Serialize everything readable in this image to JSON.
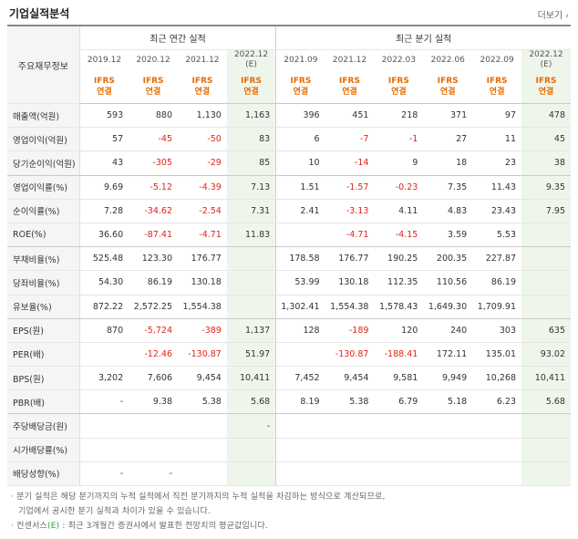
{
  "title": "기업실적분석",
  "more_label": "더보기",
  "header": {
    "row_label": "주요재무정보",
    "annual_group": "최근 연간 실적",
    "quarter_group": "최근 분기 실적",
    "periods": [
      "2019.12",
      "2020.12",
      "2021.12",
      "2022.12",
      "2021.09",
      "2021.12",
      "2022.03",
      "2022.06",
      "2022.09",
      "2022.12"
    ],
    "estimate_suffix": "(E)",
    "ifrs": "IFRS",
    "consolidated": "연결"
  },
  "rows": [
    {
      "label": "매출액(억원)",
      "values": [
        "593",
        "880",
        "1,130",
        "1,163",
        "396",
        "451",
        "218",
        "371",
        "97",
        "478"
      ]
    },
    {
      "label": "영업이익(억원)",
      "values": [
        "57",
        "-45",
        "-50",
        "83",
        "6",
        "-7",
        "-1",
        "27",
        "11",
        "45"
      ]
    },
    {
      "label": "당기순이익(억원)",
      "values": [
        "43",
        "-305",
        "-29",
        "85",
        "10",
        "-14",
        "9",
        "18",
        "23",
        "38"
      ]
    },
    {
      "label": "영업이익률(%)",
      "values": [
        "9.69",
        "-5.12",
        "-4.39",
        "7.13",
        "1.51",
        "-1.57",
        "-0.23",
        "7.35",
        "11.43",
        "9.35"
      ]
    },
    {
      "label": "순이익률(%)",
      "values": [
        "7.28",
        "-34.62",
        "-2.54",
        "7.31",
        "2.41",
        "-3.13",
        "4.11",
        "4.83",
        "23.43",
        "7.95"
      ]
    },
    {
      "label": "ROE(%)",
      "values": [
        "36.60",
        "-87.41",
        "-4.71",
        "11.83",
        "",
        "-4.71",
        "-4.15",
        "3.59",
        "5.53",
        ""
      ]
    },
    {
      "label": "부채비율(%)",
      "values": [
        "525.48",
        "123.30",
        "176.77",
        "",
        "178.58",
        "176.77",
        "190.25",
        "200.35",
        "227.87",
        ""
      ]
    },
    {
      "label": "당좌비율(%)",
      "values": [
        "54.30",
        "86.19",
        "130.18",
        "",
        "53.99",
        "130.18",
        "112.35",
        "110.56",
        "86.19",
        ""
      ]
    },
    {
      "label": "유보율(%)",
      "values": [
        "872.22",
        "2,572.25",
        "1,554.38",
        "",
        "1,302.41",
        "1,554.38",
        "1,578.43",
        "1,649.30",
        "1,709.91",
        ""
      ]
    },
    {
      "label": "EPS(원)",
      "values": [
        "870",
        "-5,724",
        "-389",
        "1,137",
        "128",
        "-189",
        "120",
        "240",
        "303",
        "635"
      ]
    },
    {
      "label": "PER(배)",
      "values": [
        "",
        "-12.46",
        "-130.87",
        "51.97",
        "",
        "-130.87",
        "-188.41",
        "172.11",
        "135.01",
        "93.02"
      ]
    },
    {
      "label": "BPS(원)",
      "values": [
        "3,202",
        "7,606",
        "9,454",
        "10,411",
        "7,452",
        "9,454",
        "9,581",
        "9,949",
        "10,268",
        "10,411"
      ]
    },
    {
      "label": "PBR(배)",
      "values": [
        "-",
        "9.38",
        "5.38",
        "5.68",
        "8.19",
        "5.38",
        "6.79",
        "5.18",
        "6.23",
        "5.68"
      ]
    },
    {
      "label": "주당배당금(원)",
      "values": [
        "",
        "",
        "",
        "-",
        "",
        "",
        "",
        "",
        "",
        ""
      ]
    },
    {
      "label": "시가배당률(%)",
      "values": [
        "",
        "",
        "",
        "",
        "",
        "",
        "",
        "",
        "",
        ""
      ]
    },
    {
      "label": "배당성향(%)",
      "values": [
        "-",
        "-",
        "",
        "",
        "",
        "",
        "",
        "",
        "",
        ""
      ]
    }
  ],
  "footnotes": {
    "line1": "· 분기 실적은 해당 분기까지의 누적 실적에서 직전 분기까지의 누적 실적을 차감하는 방식으로 계산되므로,",
    "line2": "  기업에서 공시한 분기 실적과 차이가 있을 수 있습니다.",
    "line3_prefix": "· 컨센서스",
    "line3_mark": "(E)",
    "line3_suffix": " : 최근 3개월간 증권사에서 발표한 전망치의 평균값입니다."
  }
}
